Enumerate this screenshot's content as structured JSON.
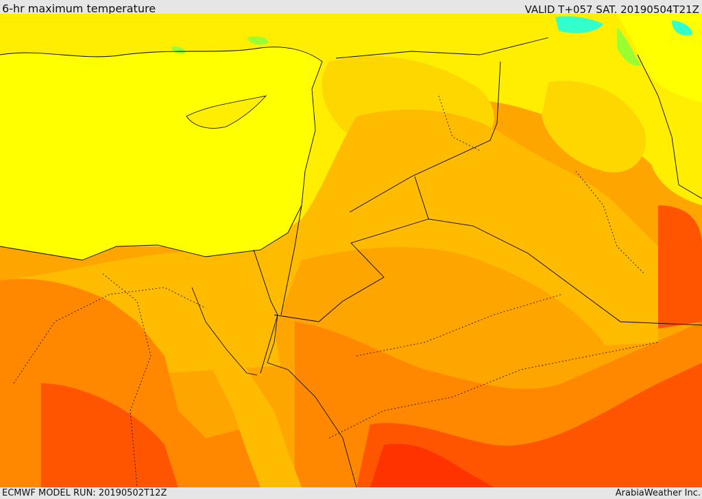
{
  "header": {
    "title": "6-hr maximum temperature",
    "valid": "VALID T+057 SAT. 20190504T21Z"
  },
  "footer": {
    "model_run": "ECMWF MODEL RUN: 20190502T12Z",
    "credit": "ArabiaWeather Inc."
  },
  "colors": {
    "sea_yellow": "#ffff00",
    "light_yellow": "#ffee00",
    "gold": "#ffd700",
    "orange_light": "#ffbb00",
    "orange": "#ffa500",
    "orange_dark": "#ff8800",
    "red_orange": "#ff5500",
    "red": "#ff3300",
    "green": "#99ff33",
    "cyan": "#33ffcc"
  },
  "icons": {
    "map": "temperature-map"
  }
}
